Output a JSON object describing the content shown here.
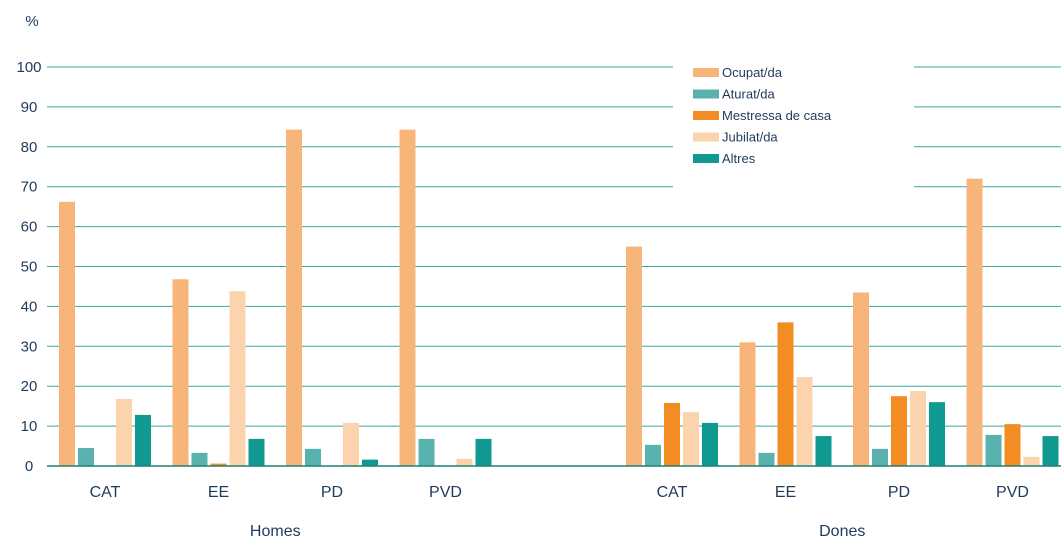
{
  "chart_data": {
    "type": "bar",
    "ylabel": "%",
    "ylim": [
      0,
      100
    ],
    "yticks": [
      "0",
      "10",
      "20",
      "30",
      "40",
      "50",
      "60",
      "70",
      "80",
      "90",
      "100"
    ],
    "grid": true,
    "legend_position": "top-right",
    "colors": {
      "gridline": "#3aa89a",
      "axis": "#1f7f76",
      "text": "#1f3a5a"
    },
    "series": [
      {
        "name": "Ocupat/da",
        "color": "#f8b57a"
      },
      {
        "name": "Aturat/da",
        "color": "#59b2ae"
      },
      {
        "name": "Mestressa de casa",
        "color": "#f38d23"
      },
      {
        "name": "Jubilat/da",
        "color": "#fbd4ad"
      },
      {
        "name": "Altres",
        "color": "#0f9990"
      }
    ],
    "groups": [
      {
        "label": "Homes",
        "categories": [
          {
            "label": "CAT",
            "values": [
              66.2,
              4.5,
              0,
              16.8,
              12.8
            ]
          },
          {
            "label": "EE",
            "values": [
              46.8,
              3.3,
              0.6,
              43.8,
              6.8
            ]
          },
          {
            "label": "PD",
            "values": [
              84.3,
              4.3,
              0,
              10.8,
              1.6
            ]
          },
          {
            "label": "PVD",
            "values": [
              84.3,
              6.8,
              0,
              1.8,
              6.8
            ]
          }
        ]
      },
      {
        "label": "Dones",
        "categories": [
          {
            "label": "CAT",
            "values": [
              55.0,
              5.3,
              15.8,
              13.5,
              10.8
            ]
          },
          {
            "label": "EE",
            "values": [
              31.0,
              3.3,
              36.0,
              22.3,
              7.5
            ]
          },
          {
            "label": "PD",
            "values": [
              43.5,
              4.3,
              17.5,
              18.8,
              16.0
            ]
          },
          {
            "label": "PVD",
            "values": [
              72.0,
              7.8,
              10.5,
              2.3,
              7.5
            ]
          }
        ]
      }
    ]
  }
}
